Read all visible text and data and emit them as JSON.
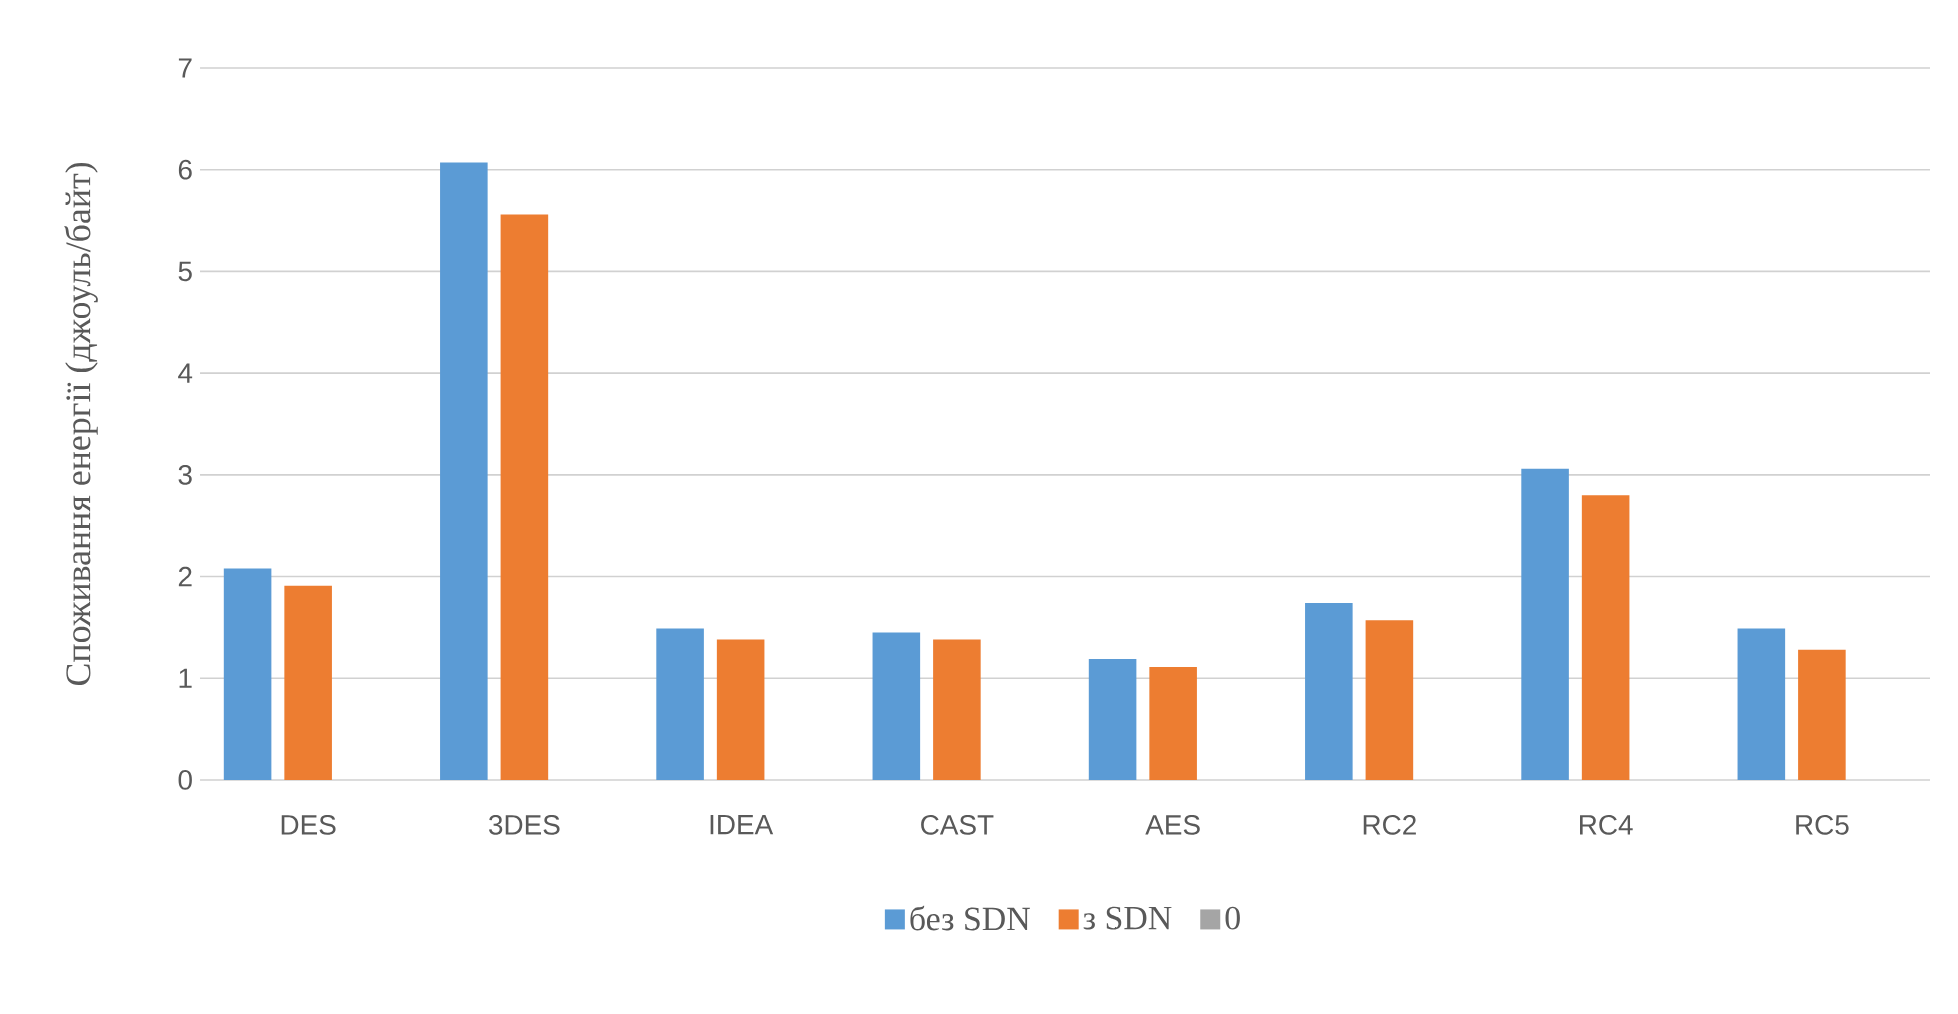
{
  "chart_data": {
    "type": "bar",
    "ylabel": "Споживання енергії (джоуль/байт)",
    "categories": [
      "DES",
      "3DES",
      "IDEA",
      "CAST",
      "AES",
      "RC2",
      "RC4",
      "RC5"
    ],
    "series": [
      {
        "name": "без SDN",
        "color": "#5b9bd5",
        "values": [
          2.08,
          6.07,
          1.49,
          1.45,
          1.19,
          1.74,
          3.06,
          1.49
        ]
      },
      {
        "name": "з SDN",
        "color": "#ed7d31",
        "values": [
          1.91,
          5.56,
          1.38,
          1.38,
          1.11,
          1.57,
          2.8,
          1.28
        ]
      },
      {
        "name": "0",
        "color": "#a5a5a5",
        "values": [
          null,
          null,
          null,
          null,
          null,
          null,
          null,
          null
        ]
      }
    ],
    "ylim": [
      0,
      7
    ],
    "yticks": [
      0,
      1,
      2,
      3,
      4,
      5,
      6,
      7
    ],
    "grid": "y",
    "legend": "bottom"
  }
}
